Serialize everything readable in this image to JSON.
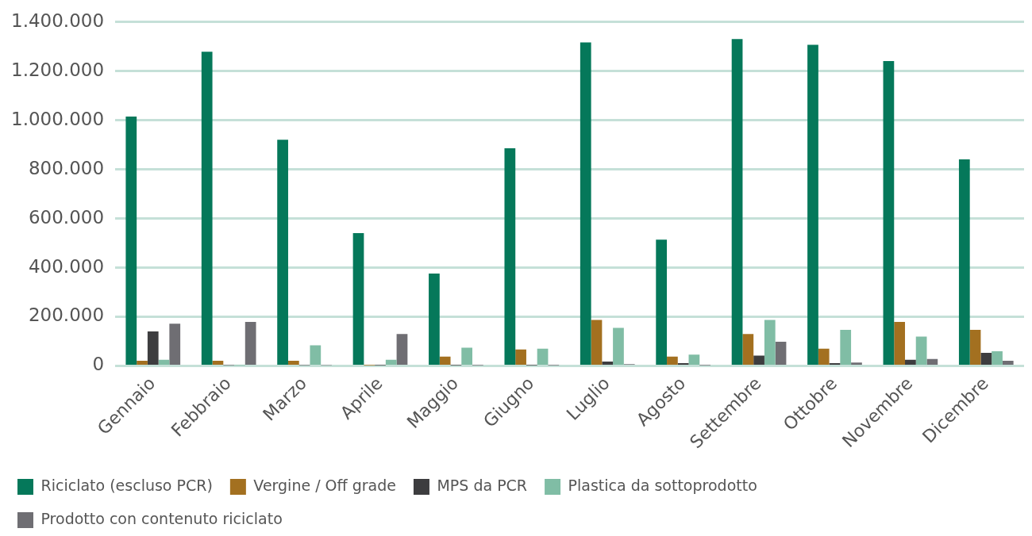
{
  "chart_data": {
    "type": "bar",
    "categories": [
      "Gennaio",
      "Febbraio",
      "Marzo",
      "Aprile",
      "Maggio",
      "Giugno",
      "Luglio",
      "Agosto",
      "Settembre",
      "Ottobre",
      "Novembre",
      "Dicembre"
    ],
    "series": [
      {
        "name": "Riciclato (escluso PCR)",
        "color": "#05785a",
        "values": [
          1015000,
          1279000,
          921000,
          541000,
          376000,
          886000,
          1317000,
          514000,
          1331000,
          1307000,
          1241000,
          841000
        ]
      },
      {
        "name": "Vergine / Off grade",
        "color": "#a37020",
        "values": [
          21000,
          21000,
          21000,
          2000,
          38000,
          67000,
          187000,
          38000,
          130000,
          70000,
          179000,
          147000
        ]
      },
      {
        "name": "MPS da PCR",
        "color": "#3d3d3f",
        "values": [
          140000,
          3000,
          3000,
          2000,
          2000,
          2000,
          18000,
          11000,
          42000,
          11000,
          25000,
          53000
        ]
      },
      {
        "name": "Plastica da sottoprodotto",
        "color": "#80bda5",
        "values": [
          25000,
          2000,
          84000,
          25000,
          74000,
          70000,
          155000,
          46000,
          187000,
          147000,
          119000,
          60000
        ]
      },
      {
        "name": "Prodotto con contenuto riciclato",
        "color": "#6f6e73",
        "values": [
          172000,
          179000,
          3000,
          130000,
          2000,
          2000,
          7000,
          2000,
          98000,
          14000,
          28000,
          21000
        ]
      }
    ],
    "ylim": [
      0,
      1400000
    ],
    "yticks": [
      0,
      {
        "value": 200000,
        "label": "200.000"
      },
      {
        "value": 400000,
        "label": "400.000"
      },
      {
        "value": 600000,
        "label": "600.000"
      },
      {
        "value": 800000,
        "label": "800.000"
      },
      {
        "value": 1000000,
        "label": "1.000.000"
      },
      {
        "value": 1200000,
        "label": "1.200.000"
      },
      {
        "value": 1400000,
        "label": "1.400.000"
      }
    ],
    "grid": "y",
    "legend": "bottom"
  }
}
